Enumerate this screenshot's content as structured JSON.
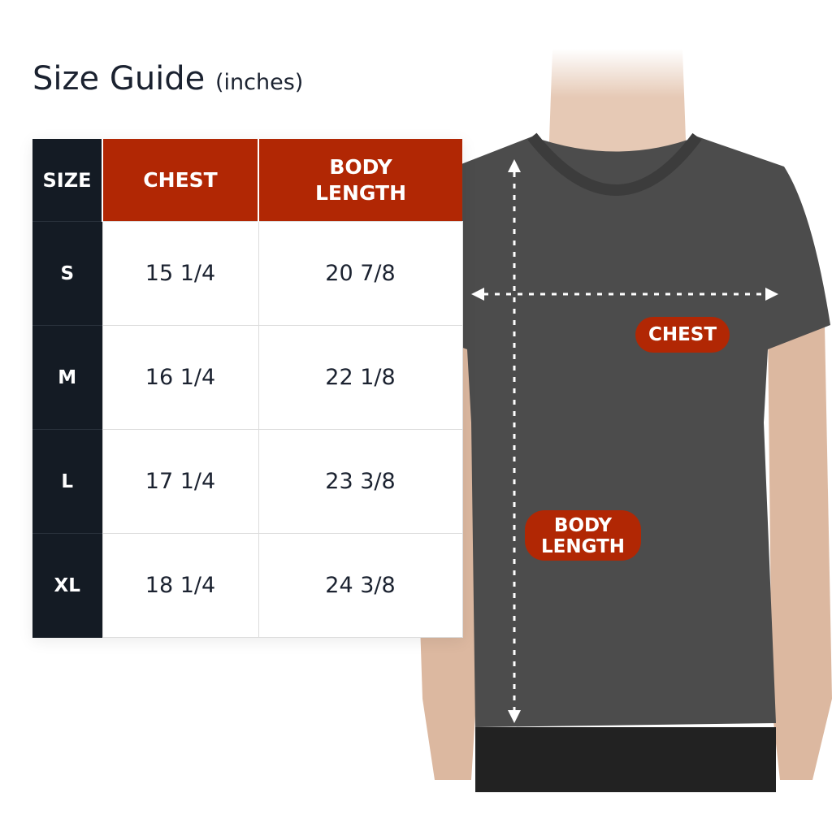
{
  "title": {
    "main": "Size Guide",
    "unit": "(inches)"
  },
  "table": {
    "headers": [
      "SIZE",
      "CHEST",
      "BODY LENGTH"
    ],
    "rows": [
      {
        "size": "S",
        "chest": "15 1/4",
        "length": "20 7/8"
      },
      {
        "size": "M",
        "chest": "16 1/4",
        "length": "22 1/8"
      },
      {
        "size": "L",
        "chest": "17 1/4",
        "length": "23 3/8"
      },
      {
        "size": "XL",
        "chest": "18 1/4",
        "length": "24 3/8"
      }
    ]
  },
  "diagram": {
    "chest_label": "CHEST",
    "length_label": "BODY LENGTH"
  },
  "colors": {
    "accent": "#b12704",
    "dark": "#141b24",
    "shirt": "#4a4a4a"
  }
}
